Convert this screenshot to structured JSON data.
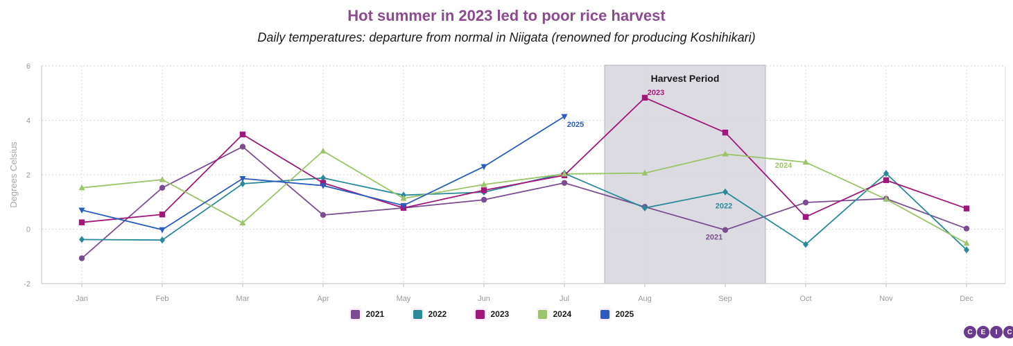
{
  "title": "Hot summer in 2023 led to poor rice harvest",
  "subtitle": "Daily temperatures: departure from normal in Niigata (renowned for producing Koshihikari)",
  "logo": [
    "C",
    "E",
    "I",
    "C"
  ],
  "chart_data": {
    "type": "line",
    "categories": [
      "Jan",
      "Feb",
      "Mar",
      "Apr",
      "May",
      "Jun",
      "Jul",
      "Aug",
      "Sep",
      "Oct",
      "Nov",
      "Dec"
    ],
    "ylabel": "Degrees Celsius",
    "xlabel": "",
    "ylim": [
      -2,
      6
    ],
    "yticks": [
      "6",
      "4",
      "2",
      "0",
      "-2"
    ],
    "grid": true,
    "legend_position": "bottom",
    "shaded_region": {
      "label": "Harvest Period",
      "from": "Jul",
      "to": "Sep"
    },
    "series": [
      {
        "name": "2021",
        "color": "#7a4d91",
        "marker": "circle",
        "values": [
          -1.07,
          1.52,
          3.03,
          0.52,
          0.78,
          1.08,
          1.7,
          0.82,
          -0.03,
          0.98,
          1.12,
          0.02
        ],
        "label": {
          "text": "2021",
          "at": "Sep"
        }
      },
      {
        "name": "2022",
        "color": "#2a8a99",
        "marker": "diamond",
        "values": [
          -0.38,
          -0.4,
          1.67,
          1.88,
          1.25,
          1.36,
          2.05,
          0.78,
          1.37,
          -0.56,
          2.05,
          -0.76
        ],
        "label": {
          "text": "2022",
          "at": "Sep"
        }
      },
      {
        "name": "2023",
        "color": "#a0197a",
        "marker": "square",
        "values": [
          0.25,
          0.54,
          3.48,
          1.7,
          0.78,
          1.43,
          1.98,
          4.83,
          3.55,
          0.45,
          1.8,
          0.76
        ],
        "label": {
          "text": "2023",
          "at": "Aug"
        }
      },
      {
        "name": "2024",
        "color": "#9cc46b",
        "marker": "triangle-up",
        "values": [
          1.52,
          1.82,
          0.23,
          2.87,
          1.13,
          1.64,
          2.03,
          2.06,
          2.76,
          2.46,
          1.1,
          -0.52
        ],
        "label": {
          "text": "2024",
          "at": "Oct"
        }
      },
      {
        "name": "2025",
        "color": "#2a5cbf",
        "marker": "triangle-down",
        "values": [
          0.7,
          -0.02,
          1.86,
          1.6,
          0.87,
          2.3,
          4.14,
          null,
          null,
          null,
          null,
          null
        ],
        "label": {
          "text": "2025",
          "at": "Jul"
        }
      }
    ]
  }
}
